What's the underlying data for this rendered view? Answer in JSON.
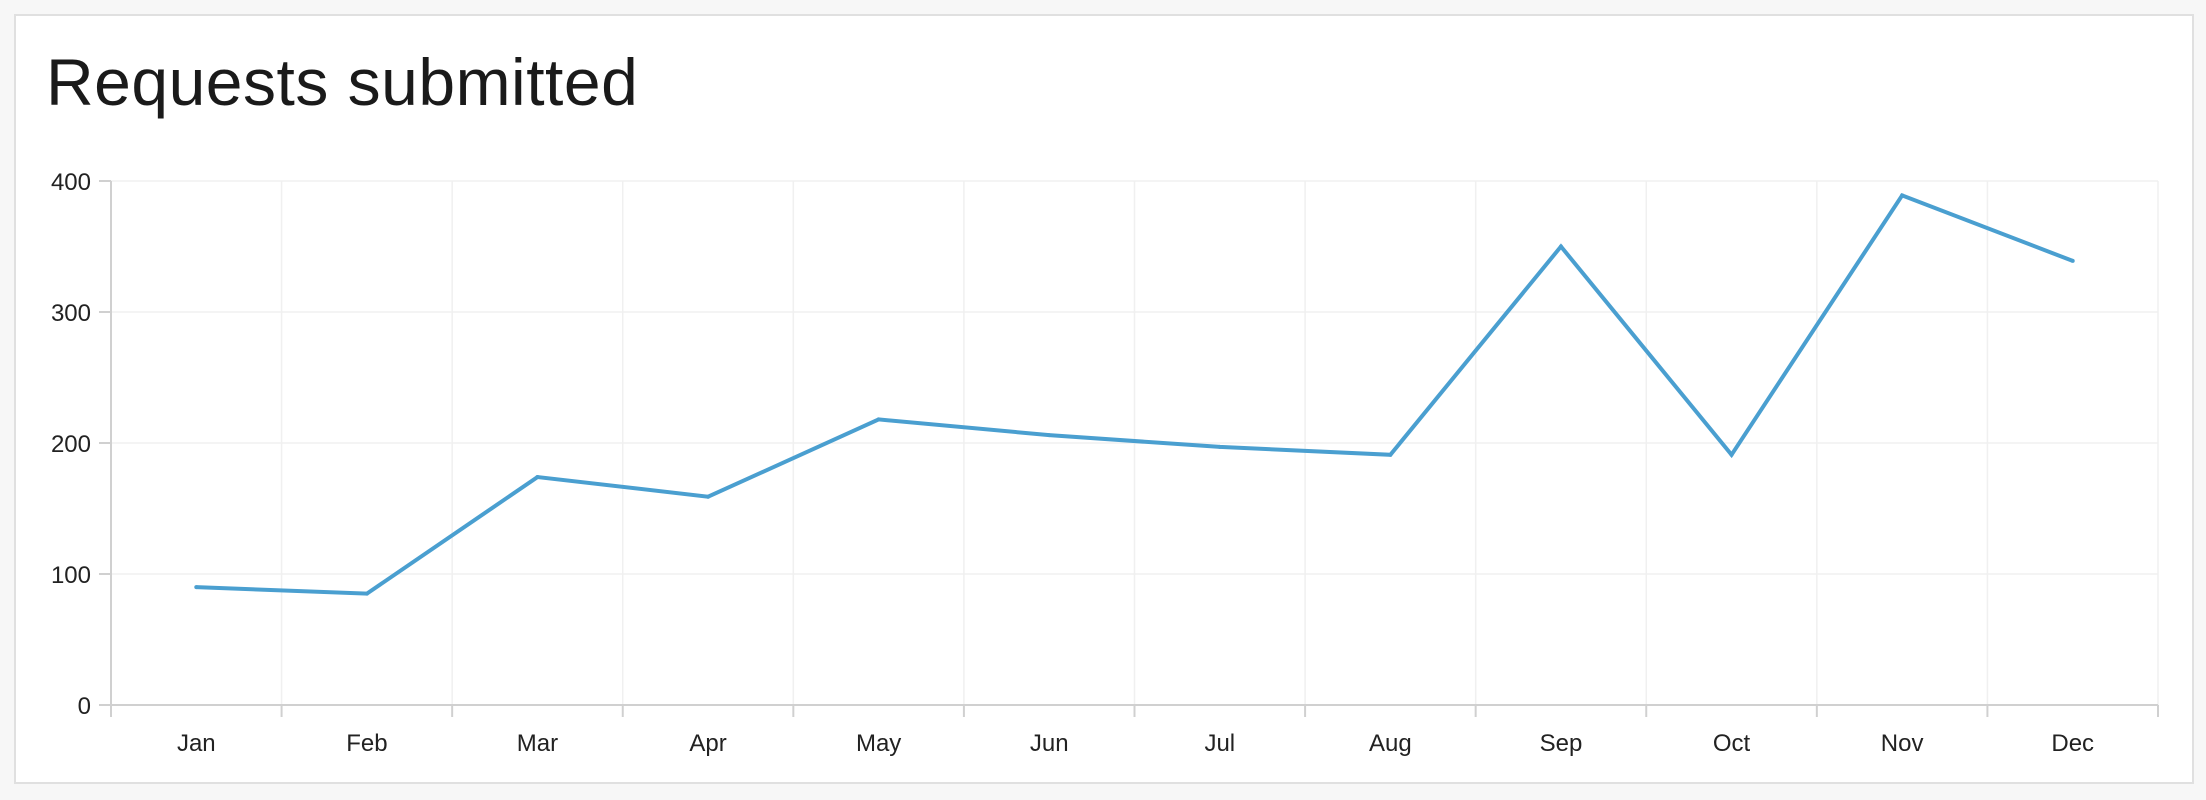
{
  "chart_data": {
    "type": "line",
    "title": "Requests submitted",
    "xlabel": "",
    "ylabel": "",
    "categories": [
      "Jan",
      "Feb",
      "Mar",
      "Apr",
      "May",
      "Jun",
      "Jul",
      "Aug",
      "Sep",
      "Oct",
      "Nov",
      "Dec"
    ],
    "series": [
      {
        "values": [
          90,
          85,
          174,
          159,
          218,
          206,
          197,
          191,
          350,
          191,
          389,
          339
        ],
        "color": "#4a9fd0"
      }
    ],
    "ylim": [
      0,
      400
    ],
    "yticks": [
      0,
      100,
      200,
      300,
      400
    ],
    "grid": true,
    "legend": "none"
  }
}
